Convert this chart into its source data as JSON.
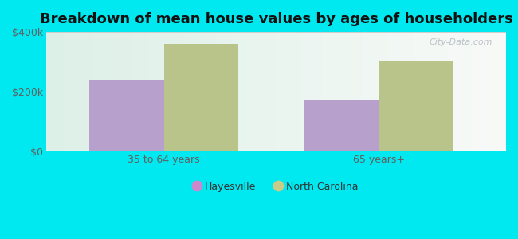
{
  "title": "Breakdown of mean house values by ages of householders",
  "categories": [
    "35 to 64 years",
    "65 years+"
  ],
  "series": {
    "Hayesville": [
      240000,
      170000
    ],
    "North Carolina": [
      360000,
      300000
    ]
  },
  "bar_colors": {
    "Hayesville": "#b8a0cc",
    "North Carolina": "#b8c48a"
  },
  "ylim": [
    0,
    400000
  ],
  "yticks": [
    0,
    200000,
    400000
  ],
  "ytick_labels": [
    "$0",
    "$200k",
    "$400k"
  ],
  "background_color": "#00e8f0",
  "plot_bg_left": "#ddf0e8",
  "plot_bg_right": "#f8faf8",
  "title_fontsize": 13,
  "bar_width": 0.38,
  "watermark": "City-Data.com",
  "legend_colors": {
    "Hayesville": "#cc88cc",
    "North Carolina": "#c8cc88"
  }
}
